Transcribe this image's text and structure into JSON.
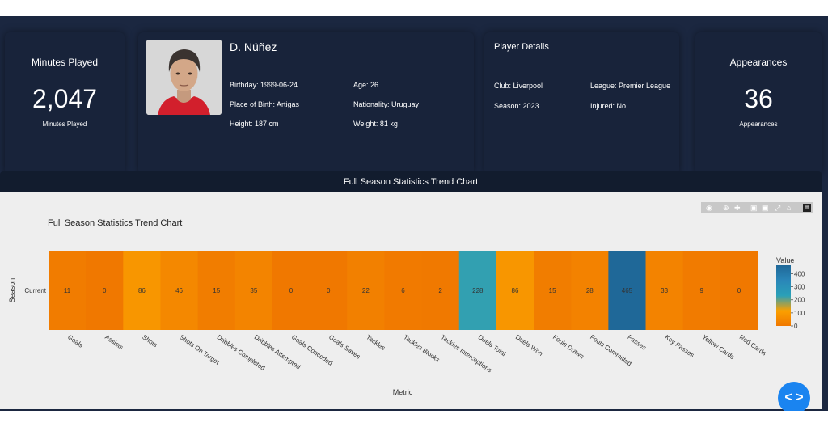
{
  "minutes_card": {
    "title": "Minutes Played",
    "value": "2,047",
    "subtitle": "Minutes Played"
  },
  "player": {
    "name": "D. Núñez",
    "birthday": "Birthday: 1999-06-24",
    "age": "Age: 26",
    "place_of_birth": "Place of Birth: Artigas",
    "nationality": "Nationality: Uruguay",
    "height": "Height: 187 cm",
    "weight": "Weight: 81 kg"
  },
  "details": {
    "title": "Player Details",
    "club": "Club: Liverpool",
    "league": "League: Premier League",
    "season": "Season: 2023",
    "injured": "Injured: No"
  },
  "appearances_card": {
    "title": "Appearances",
    "value": "36",
    "subtitle": "Appearances"
  },
  "chart_section": {
    "header": "Full Season Statistics Trend Chart"
  },
  "chart_data": {
    "type": "heatmap",
    "title": "Full Season Statistics Trend Chart",
    "xlabel": "Metric",
    "ylabel": "Season",
    "y_categories": [
      "Current"
    ],
    "categories": [
      "Goals",
      "Assists",
      "Shots",
      "Shots On Target",
      "Dribbles Completed",
      "Dribbles Attempted",
      "Goals Conceded",
      "Goals Saves",
      "Tackles",
      "Tackles Blocks",
      "Tackles Interceptions",
      "Duels Total",
      "Duels Won",
      "Fouls Drawn",
      "Fouls Committed",
      "Passes",
      "Key Passes",
      "Yellow Cards",
      "Red Cards"
    ],
    "values": [
      11,
      0,
      86,
      46,
      15,
      35,
      0,
      0,
      22,
      6,
      2,
      228,
      86,
      15,
      28,
      465,
      33,
      9,
      0
    ],
    "colorbar": {
      "title": "Value",
      "ticks": [
        0,
        100,
        200,
        300,
        400
      ],
      "colors": [
        "#f07800",
        "#fba000",
        "#2aa0b8",
        "#2a86b8",
        "#1f6898"
      ]
    }
  }
}
